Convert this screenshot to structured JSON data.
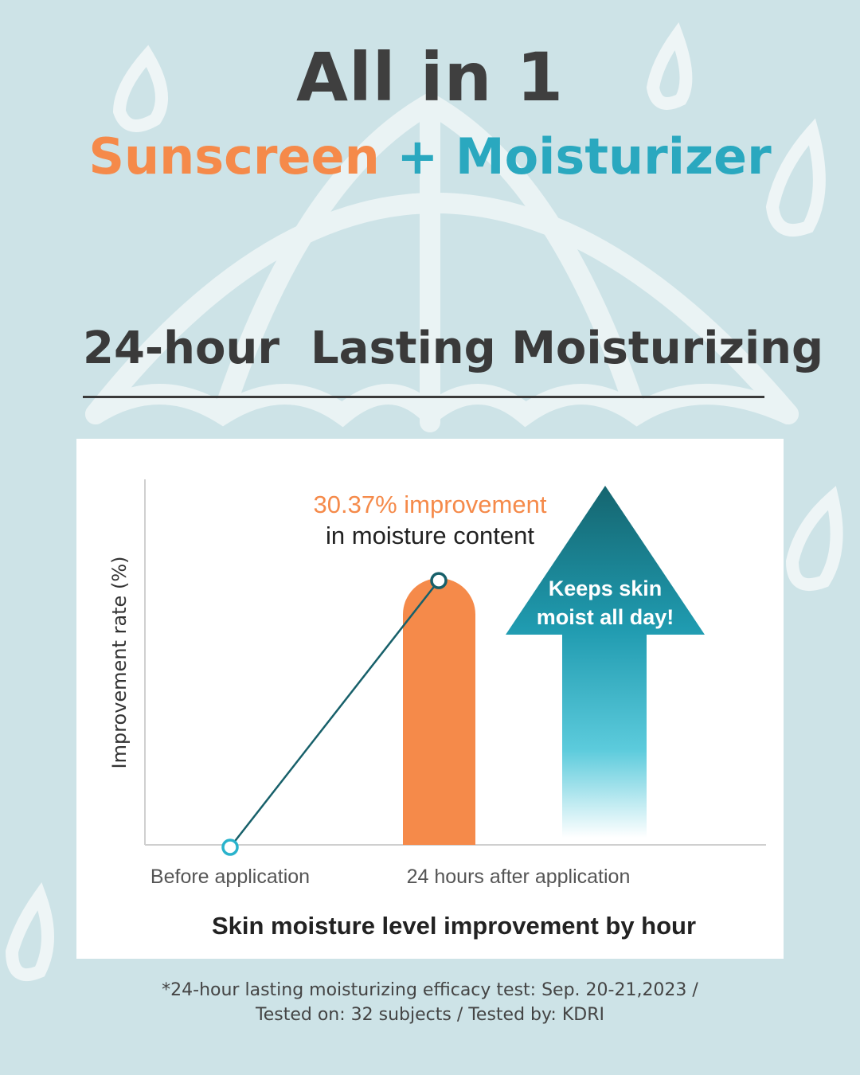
{
  "header": {
    "title": "All in 1",
    "subtitle_part1": "Sunscreen",
    "subtitle_plus": "+",
    "subtitle_part2": "Moisturizer",
    "section_title": "24-hour  Lasting Moisturizing"
  },
  "colors": {
    "background": "#cde3e7",
    "orange": "#f58a4a",
    "teal": "#2aa8bf",
    "arrow_dark": "#17707d",
    "line": "#17606a"
  },
  "chart_data": {
    "type": "bar",
    "title": "Skin moisture level improvement by hour",
    "ylabel": "Improvement rate (%)",
    "xlabel": "",
    "categories": [
      "Before application",
      "24 hours after application"
    ],
    "values": [
      0,
      30.37
    ],
    "ylim": [
      0,
      42
    ],
    "grid": false,
    "annotation_value": "30.37% improvement",
    "annotation_text": "in moisture content",
    "arrow_text_line1": "Keeps skin",
    "arrow_text_line2": "moist all day!"
  },
  "footnote": {
    "line1": "*24-hour lasting moisturizing efficacy test: Sep. 20-21,2023 /",
    "line2": "Tested on: 32 subjects / Tested by: KDRI"
  }
}
